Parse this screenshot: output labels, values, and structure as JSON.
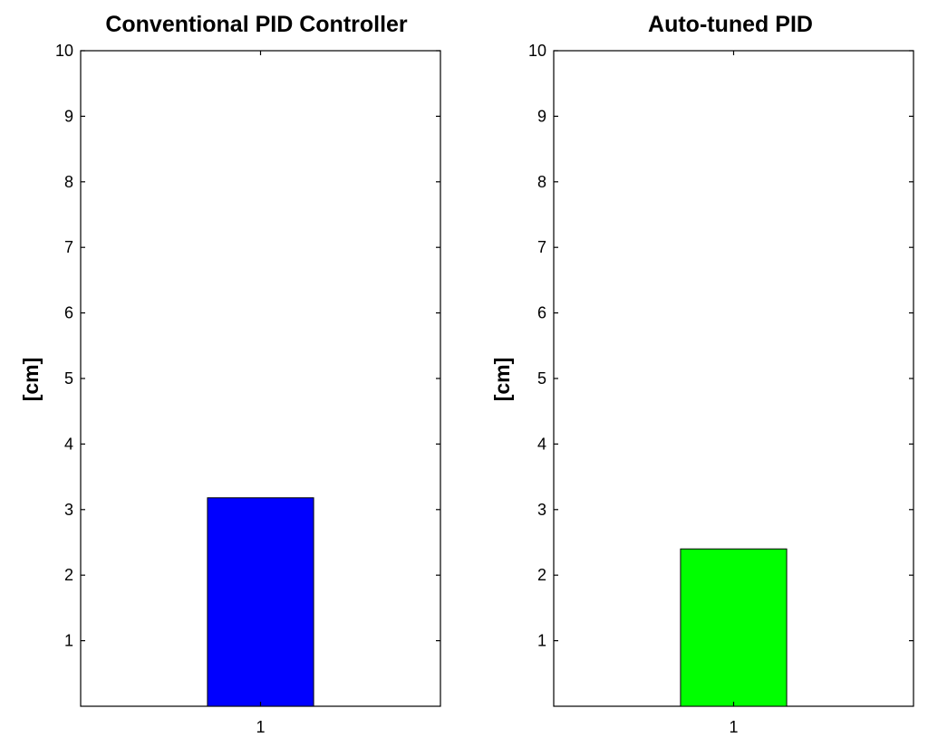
{
  "chart_data": [
    {
      "type": "bar",
      "title": "Conventional PID Controller",
      "ylabel": "[cm]",
      "xlabel": "",
      "categories": [
        "1"
      ],
      "values": [
        3.18
      ],
      "ylim": [
        0,
        10
      ],
      "yticks": [
        "1",
        "2",
        "3",
        "4",
        "5",
        "6",
        "7",
        "8",
        "9",
        "10"
      ],
      "bar_color": "#0000ff",
      "grid": false
    },
    {
      "type": "bar",
      "title": "Auto-tuned PID",
      "ylabel": "[cm]",
      "xlabel": "",
      "categories": [
        "1"
      ],
      "values": [
        2.4
      ],
      "ylim": [
        0,
        10
      ],
      "yticks": [
        "1",
        "2",
        "3",
        "4",
        "5",
        "6",
        "7",
        "8",
        "9",
        "10"
      ],
      "bar_color": "#00ff00",
      "grid": false
    }
  ]
}
